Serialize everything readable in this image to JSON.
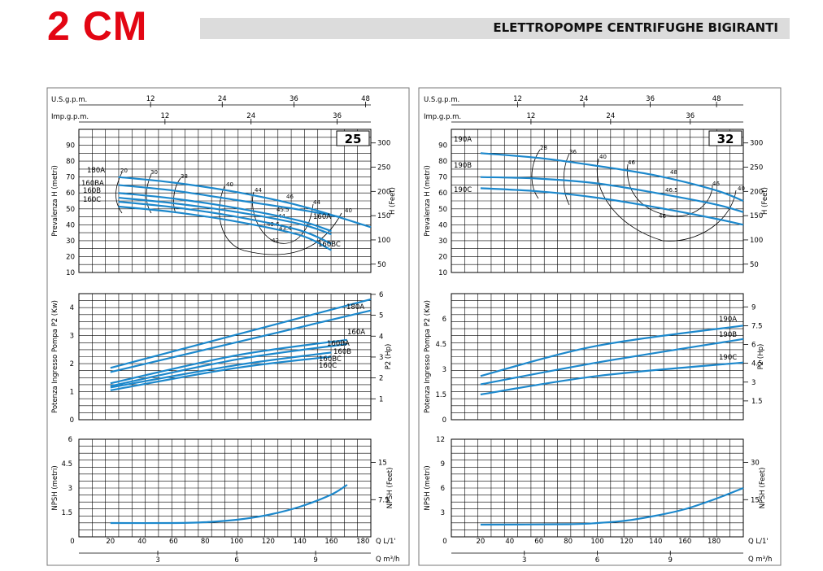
{
  "header": {
    "logo": "2 CM",
    "title": "ELETTROPOMPE CENTRIFUGHE BIGIRANTI"
  },
  "colors": {
    "curve": "#1c88cc",
    "logo": "#e30613",
    "banner": "#dcdcdc"
  },
  "chart_data": [
    {
      "id": "25",
      "type": "line",
      "badge": "25",
      "flow_axis": {
        "label": "Q L/1'",
        "ticks": [
          0,
          20,
          40,
          60,
          80,
          100,
          120,
          140,
          160,
          180
        ],
        "range": [
          0,
          185
        ]
      },
      "m3h_axis": {
        "label": "Q m³/h",
        "ticks": [
          3,
          6,
          9
        ]
      },
      "usgpm_axis": {
        "label": "U.S.g.p.m.",
        "ticks": [
          12,
          24,
          36,
          48
        ]
      },
      "impgpm_axis": {
        "label": "Imp.g.p.m.",
        "ticks": [
          12,
          24,
          36
        ]
      },
      "head": {
        "ylabel": "Prevalenza H (metri)",
        "ylabel_right": "H (Feet)",
        "ylim": [
          10,
          100
        ],
        "yticks": [
          10,
          20,
          30,
          40,
          50,
          60,
          70,
          80,
          90
        ],
        "right_ticks": [
          50,
          100,
          150,
          200,
          250,
          300
        ],
        "series": [
          {
            "name": "180A",
            "x": [
              25,
              60,
              100,
              140,
              185
            ],
            "values": [
              70,
              66.5,
              60.5,
              52,
              38.5
            ]
          },
          {
            "name": "160A",
            "x": [
              25,
              60,
              100,
              140,
              165
            ],
            "values": [
              65,
              61.5,
              55.5,
              49.5,
              45
            ]
          },
          {
            "name": "160BA",
            "x": [
              25,
              60,
              100,
              140,
              160
            ],
            "values": [
              60,
              56.5,
              50.5,
              42.5,
              36
            ]
          },
          {
            "name": "160B",
            "x": [
              25,
              60,
              100,
              140,
              160
            ],
            "values": [
              57,
              53.5,
              48,
              40.5,
              34
            ]
          },
          {
            "name": "160BC",
            "x": [
              25,
              60,
              100,
              140,
              160
            ],
            "values": [
              54.5,
              51,
              45,
              36.5,
              28
            ]
          },
          {
            "name": "160C",
            "x": [
              25,
              60,
              100,
              140,
              160
            ],
            "values": [
              51.5,
              48,
              42,
              33.5,
              24
            ]
          }
        ],
        "efficiency_labels": [
          "20",
          "30",
          "38",
          "40",
          "44",
          "46",
          "45.5",
          "44",
          "43.6",
          "43.4",
          "42",
          "40",
          "44"
        ],
        "series_labels": [
          "180A",
          "160BA",
          "160B",
          "160C",
          "160A",
          "160BC"
        ]
      },
      "power": {
        "ylabel": "Potenza Ingresso Pompa P2 (Kw)",
        "ylabel_right": "P2 (Hp)",
        "ylim": [
          0,
          4.5
        ],
        "yticks": [
          0,
          1,
          2,
          3,
          4
        ],
        "right_ticks": [
          1,
          2,
          3,
          4,
          5,
          6
        ],
        "series": [
          {
            "name": "180A",
            "x": [
              20,
              185
            ],
            "values": [
              1.85,
              4.3
            ]
          },
          {
            "name": "160A",
            "x": [
              20,
              185
            ],
            "values": [
              1.7,
              3.9
            ]
          },
          {
            "name": "160BA",
            "x": [
              20,
              100,
              170
            ],
            "values": [
              1.3,
              2.3,
              2.85
            ]
          },
          {
            "name": "160B",
            "x": [
              20,
              100,
              170
            ],
            "values": [
              1.2,
              2.15,
              2.7
            ]
          },
          {
            "name": "160BC",
            "x": [
              20,
              100,
              160
            ],
            "values": [
              1.15,
              1.95,
              2.4
            ]
          },
          {
            "name": "160C",
            "x": [
              20,
              100,
              160
            ],
            "values": [
              1.05,
              1.85,
              2.25
            ]
          }
        ]
      },
      "npsh": {
        "ylabel": "NPSH (metri)",
        "ylabel_right": "NPSH (Feet)",
        "ylim": [
          0,
          6
        ],
        "yticks": [
          1.5,
          3,
          4.5,
          6
        ],
        "yticks_labels": [
          "1.5",
          "3",
          "4.5",
          "6"
        ],
        "right_ticks": [
          "7.5",
          "15"
        ],
        "series": [
          {
            "name": "NPSH",
            "x": [
              20,
              60,
              80,
              100,
              120,
              140,
              160,
              170
            ],
            "values": [
              0.85,
              0.85,
              0.9,
              1.05,
              1.35,
              1.85,
              2.6,
              3.2
            ]
          }
        ]
      }
    },
    {
      "id": "32",
      "type": "line",
      "badge": "32",
      "flow_axis": {
        "label": "Q L/1'",
        "ticks": [
          0,
          20,
          40,
          60,
          80,
          100,
          120,
          140,
          160,
          180
        ],
        "range": [
          0,
          200
        ]
      },
      "m3h_axis": {
        "label": "Q m³/h",
        "ticks": [
          3,
          6,
          9
        ]
      },
      "usgpm_axis": {
        "label": "U.S.g.p.m.",
        "ticks": [
          12,
          24,
          36,
          48
        ]
      },
      "impgpm_axis": {
        "label": "Imp.g.p.m.",
        "ticks": [
          12,
          24,
          36
        ]
      },
      "head": {
        "ylabel": "Prevalenza H (metri)",
        "ylabel_right": "H (Feet)",
        "ylim": [
          10,
          100
        ],
        "yticks": [
          10,
          20,
          30,
          40,
          50,
          60,
          70,
          80,
          90
        ],
        "right_ticks": [
          50,
          100,
          150,
          200,
          250,
          300
        ],
        "series": [
          {
            "name": "190A",
            "x": [
              20,
              60,
              100,
              140,
              180,
              200
            ],
            "values": [
              85,
              82,
              77,
              71,
              62,
              55
            ]
          },
          {
            "name": "190B",
            "x": [
              20,
              60,
              100,
              140,
              180,
              200
            ],
            "values": [
              70,
              69,
              66,
              60,
              53,
              48
            ]
          },
          {
            "name": "190C",
            "x": [
              20,
              60,
              100,
              140,
              180,
              200
            ],
            "values": [
              63,
              61,
              57,
              51,
              44,
              40
            ]
          }
        ],
        "efficiency_labels": [
          "28",
          "36",
          "40",
          "46",
          "48",
          "46.5",
          "46",
          "46",
          "40"
        ],
        "series_labels": [
          "190A",
          "190B",
          "190C"
        ]
      },
      "power": {
        "ylabel": "Potenza Ingresso Pompa P2 (Kw)",
        "ylabel_right": "P2 (Hp)",
        "ylim": [
          0,
          7.5
        ],
        "yticks": [
          0,
          1.5,
          3,
          4.5,
          6
        ],
        "yticks_labels": [
          "0",
          "1.5",
          "3",
          "4.5",
          "6"
        ],
        "right_ticks": [
          "1.5",
          "3",
          "4.5",
          "6",
          "7.5",
          "9"
        ],
        "series": [
          {
            "name": "190A",
            "x": [
              20,
              100,
              200
            ],
            "values": [
              2.6,
              4.4,
              5.6
            ]
          },
          {
            "name": "190B",
            "x": [
              20,
              100,
              200
            ],
            "values": [
              2.1,
              3.4,
              4.8
            ]
          },
          {
            "name": "190C",
            "x": [
              20,
              100,
              200
            ],
            "values": [
              1.5,
              2.6,
              3.4
            ]
          }
        ],
        "series_labels": [
          "190A",
          "190B",
          "190C"
        ]
      },
      "npsh": {
        "ylabel": "NPSH (metri)",
        "ylabel_right": "NPSH (Feet)",
        "ylim": [
          0,
          12
        ],
        "yticks": [
          3,
          6,
          9,
          12
        ],
        "yticks_labels": [
          "3",
          "6",
          "9",
          "12"
        ],
        "right_ticks": [
          "15",
          "30"
        ],
        "series": [
          {
            "name": "NPSH",
            "x": [
              20,
              80,
              100,
              120,
              140,
              160,
              180,
              200
            ],
            "values": [
              1.5,
              1.55,
              1.7,
              2.0,
              2.6,
              3.4,
              4.6,
              6.0
            ]
          }
        ]
      }
    }
  ]
}
